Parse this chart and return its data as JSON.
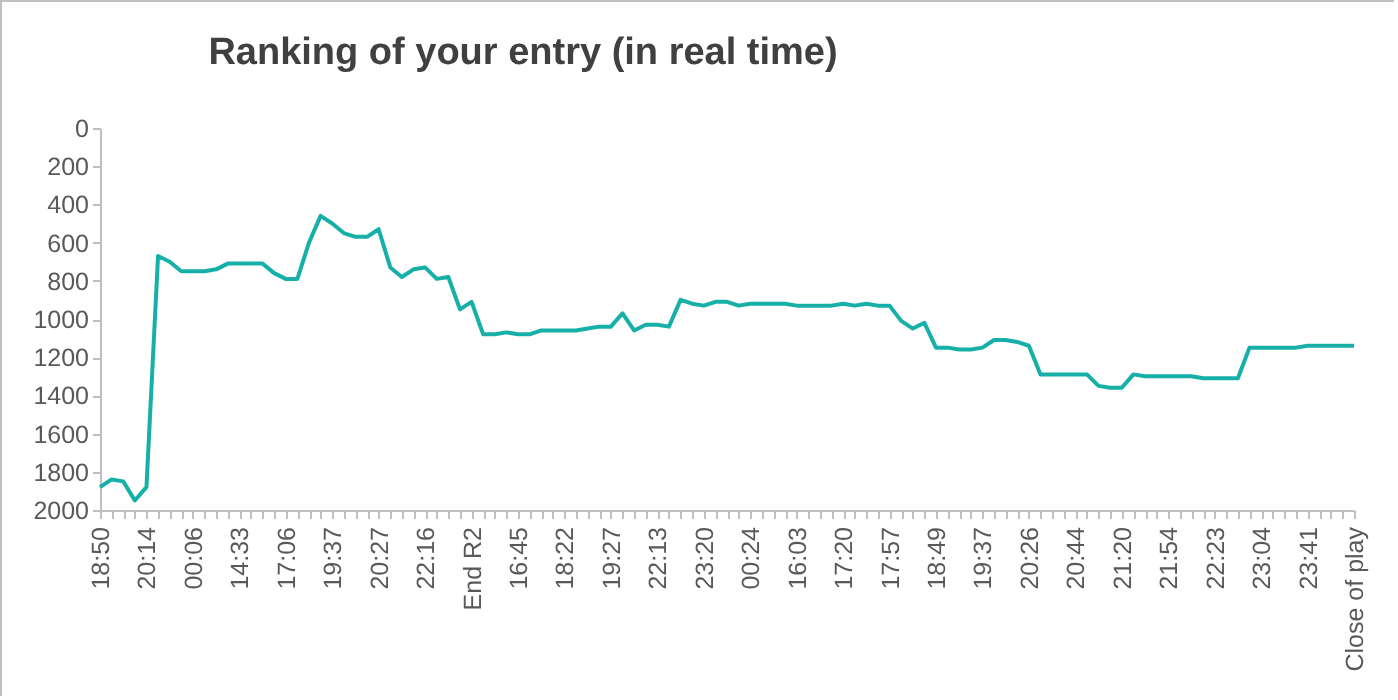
{
  "chart_data": {
    "type": "line",
    "title": "Ranking of your entry (in real time)",
    "categories": [
      "18:50",
      null,
      null,
      null,
      "20:14",
      null,
      null,
      null,
      "00:06",
      null,
      null,
      null,
      "14:33",
      null,
      null,
      null,
      "17:06",
      null,
      null,
      null,
      "19:37",
      null,
      null,
      null,
      "20:27",
      null,
      null,
      null,
      "22:16",
      null,
      null,
      null,
      "End R2",
      null,
      null,
      null,
      "16:45",
      null,
      null,
      null,
      "18:22",
      null,
      null,
      null,
      "19:27",
      null,
      null,
      null,
      "22:13",
      null,
      null,
      null,
      "23:20",
      null,
      null,
      null,
      "00:24",
      null,
      null,
      null,
      "16:03",
      null,
      null,
      null,
      "17:20",
      null,
      null,
      null,
      "17:57",
      null,
      null,
      null,
      "18:49",
      null,
      null,
      null,
      "19:37",
      null,
      null,
      null,
      "20:26",
      null,
      null,
      null,
      "20:44",
      null,
      null,
      null,
      "21:20",
      null,
      null,
      null,
      "21:54",
      null,
      null,
      null,
      "22:23",
      null,
      null,
      null,
      "23:04",
      null,
      null,
      null,
      "23:41",
      null,
      null,
      null,
      "Close of play"
    ],
    "series": [
      {
        "color": "#17b0a8",
        "values": [
          1880,
          1840,
          1850,
          1950,
          1880,
          670,
          700,
          750,
          750,
          750,
          740,
          710,
          710,
          710,
          710,
          760,
          790,
          790,
          600,
          460,
          500,
          550,
          570,
          570,
          530,
          730,
          780,
          740,
          730,
          790,
          780,
          950,
          910,
          1080,
          1080,
          1070,
          1080,
          1080,
          1060,
          1060,
          1060,
          1060,
          1050,
          1040,
          1040,
          970,
          1060,
          1030,
          1030,
          1040,
          900,
          920,
          930,
          910,
          910,
          930,
          920,
          920,
          920,
          920,
          930,
          930,
          930,
          930,
          920,
          930,
          920,
          930,
          930,
          1010,
          1050,
          1020,
          1150,
          1150,
          1160,
          1160,
          1150,
          1110,
          1110,
          1120,
          1140,
          1290,
          1290,
          1290,
          1290,
          1290,
          1350,
          1360,
          1360,
          1290,
          1300,
          1300,
          1300,
          1300,
          1300,
          1310,
          1310,
          1310,
          1310,
          1150,
          1150,
          1150,
          1150,
          1150,
          1140,
          1140,
          1140,
          1140,
          1140
        ]
      }
    ],
    "ylim": [
      2000,
      0
    ],
    "yticks": [
      0,
      200,
      400,
      600,
      800,
      1000,
      1200,
      1400,
      1600,
      1800,
      2000
    ],
    "grid": false
  }
}
